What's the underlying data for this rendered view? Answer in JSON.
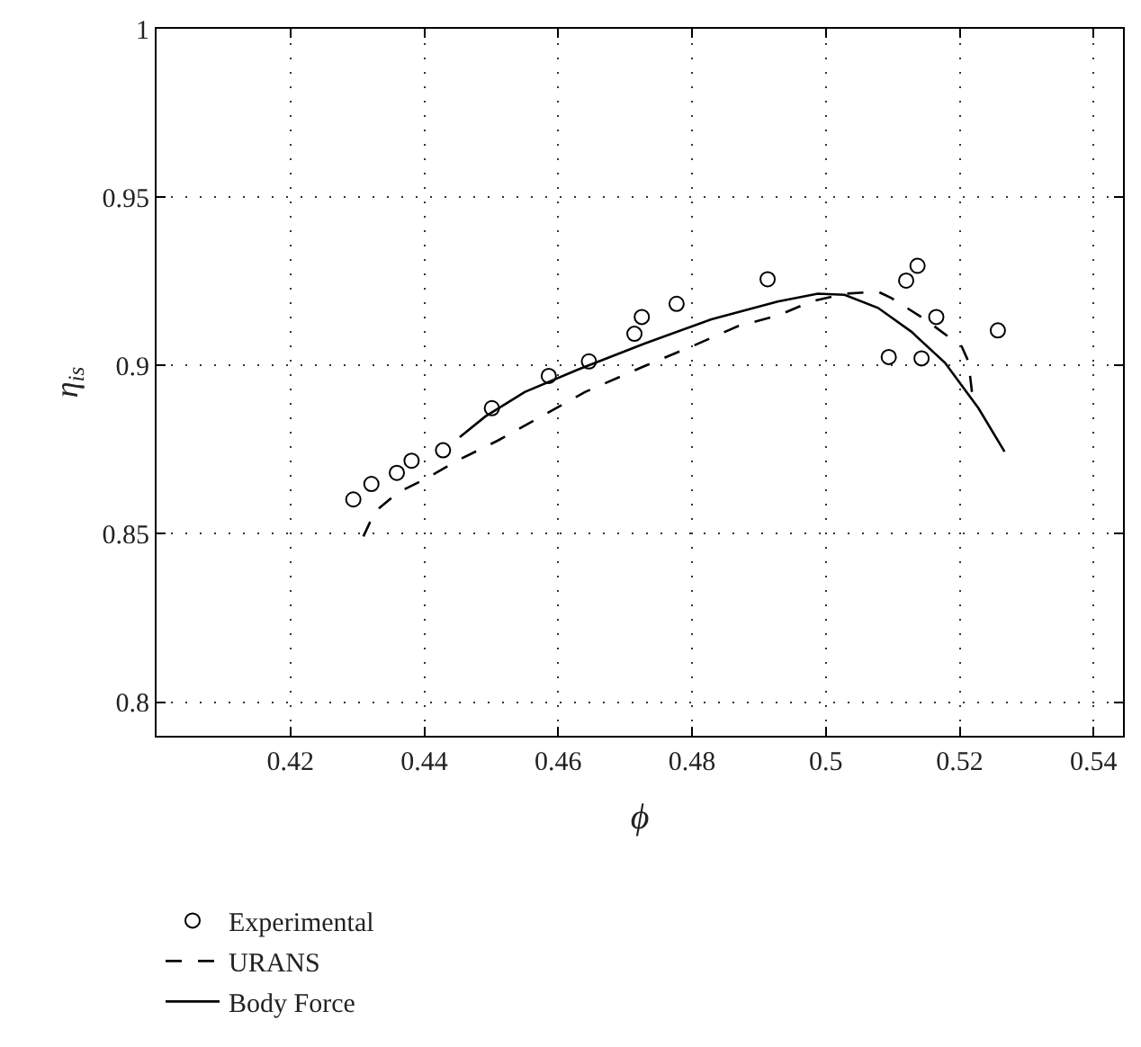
{
  "chart_data": {
    "type": "scatter",
    "xlabel": "ϕ",
    "ylabel": "η$_{is}$",
    "xlim": [
      0.4,
      0.5444
    ],
    "ylim": [
      0.79,
      1
    ],
    "xticks": [
      0.42,
      0.44,
      0.46,
      0.48,
      0.5,
      0.52,
      0.54
    ],
    "yticks": [
      0.8,
      0.85,
      0.9,
      0.95,
      1
    ],
    "grid": true,
    "legend": "bottom left",
    "series": [
      {
        "name": "Experimental",
        "marker": "circle",
        "color": "#000000",
        "x": [
          0.4294,
          0.4321,
          0.4359,
          0.4381,
          0.4428,
          0.4501,
          0.4586,
          0.4646,
          0.4714,
          0.4725,
          0.4777,
          0.4913,
          0.5094,
          0.512,
          0.5137,
          0.5143,
          0.5165,
          0.5257
        ],
        "values": [
          0.8602,
          0.8648,
          0.8681,
          0.8717,
          0.8748,
          0.8873,
          0.8969,
          0.9012,
          0.9094,
          0.9144,
          0.9183,
          0.9256,
          0.9025,
          0.9252,
          0.9296,
          0.9021,
          0.9144,
          0.9104
        ]
      },
      {
        "name": "URANS",
        "type": "line",
        "line_style": "dashed",
        "color": "#000000",
        "x": [
          0.4309,
          0.4326,
          0.4361,
          0.4401,
          0.4451,
          0.451,
          0.458,
          0.464,
          0.4729,
          0.4799,
          0.4869,
          0.4928,
          0.4978,
          0.5028,
          0.5078,
          0.5098,
          0.5148,
          0.5203,
          0.5213,
          0.522
        ],
        "values": [
          0.8492,
          0.8565,
          0.8623,
          0.8662,
          0.8719,
          0.8777,
          0.8854,
          0.8921,
          0.8998,
          0.9056,
          0.9117,
          0.9148,
          0.919,
          0.9213,
          0.9219,
          0.92,
          0.9137,
          0.9056,
          0.9012,
          0.8892
        ]
      },
      {
        "name": "Body Force",
        "type": "line",
        "line_style": "solid",
        "color": "#000000",
        "x": [
          0.4453,
          0.4491,
          0.455,
          0.463,
          0.4729,
          0.4829,
          0.4928,
          0.4988,
          0.5028,
          0.5078,
          0.5128,
          0.5178,
          0.5228,
          0.5267
        ],
        "values": [
          0.8787,
          0.8848,
          0.8921,
          0.8988,
          0.9065,
          0.9137,
          0.919,
          0.9213,
          0.921,
          0.9171,
          0.91,
          0.9008,
          0.8873,
          0.8744
        ]
      }
    ]
  }
}
